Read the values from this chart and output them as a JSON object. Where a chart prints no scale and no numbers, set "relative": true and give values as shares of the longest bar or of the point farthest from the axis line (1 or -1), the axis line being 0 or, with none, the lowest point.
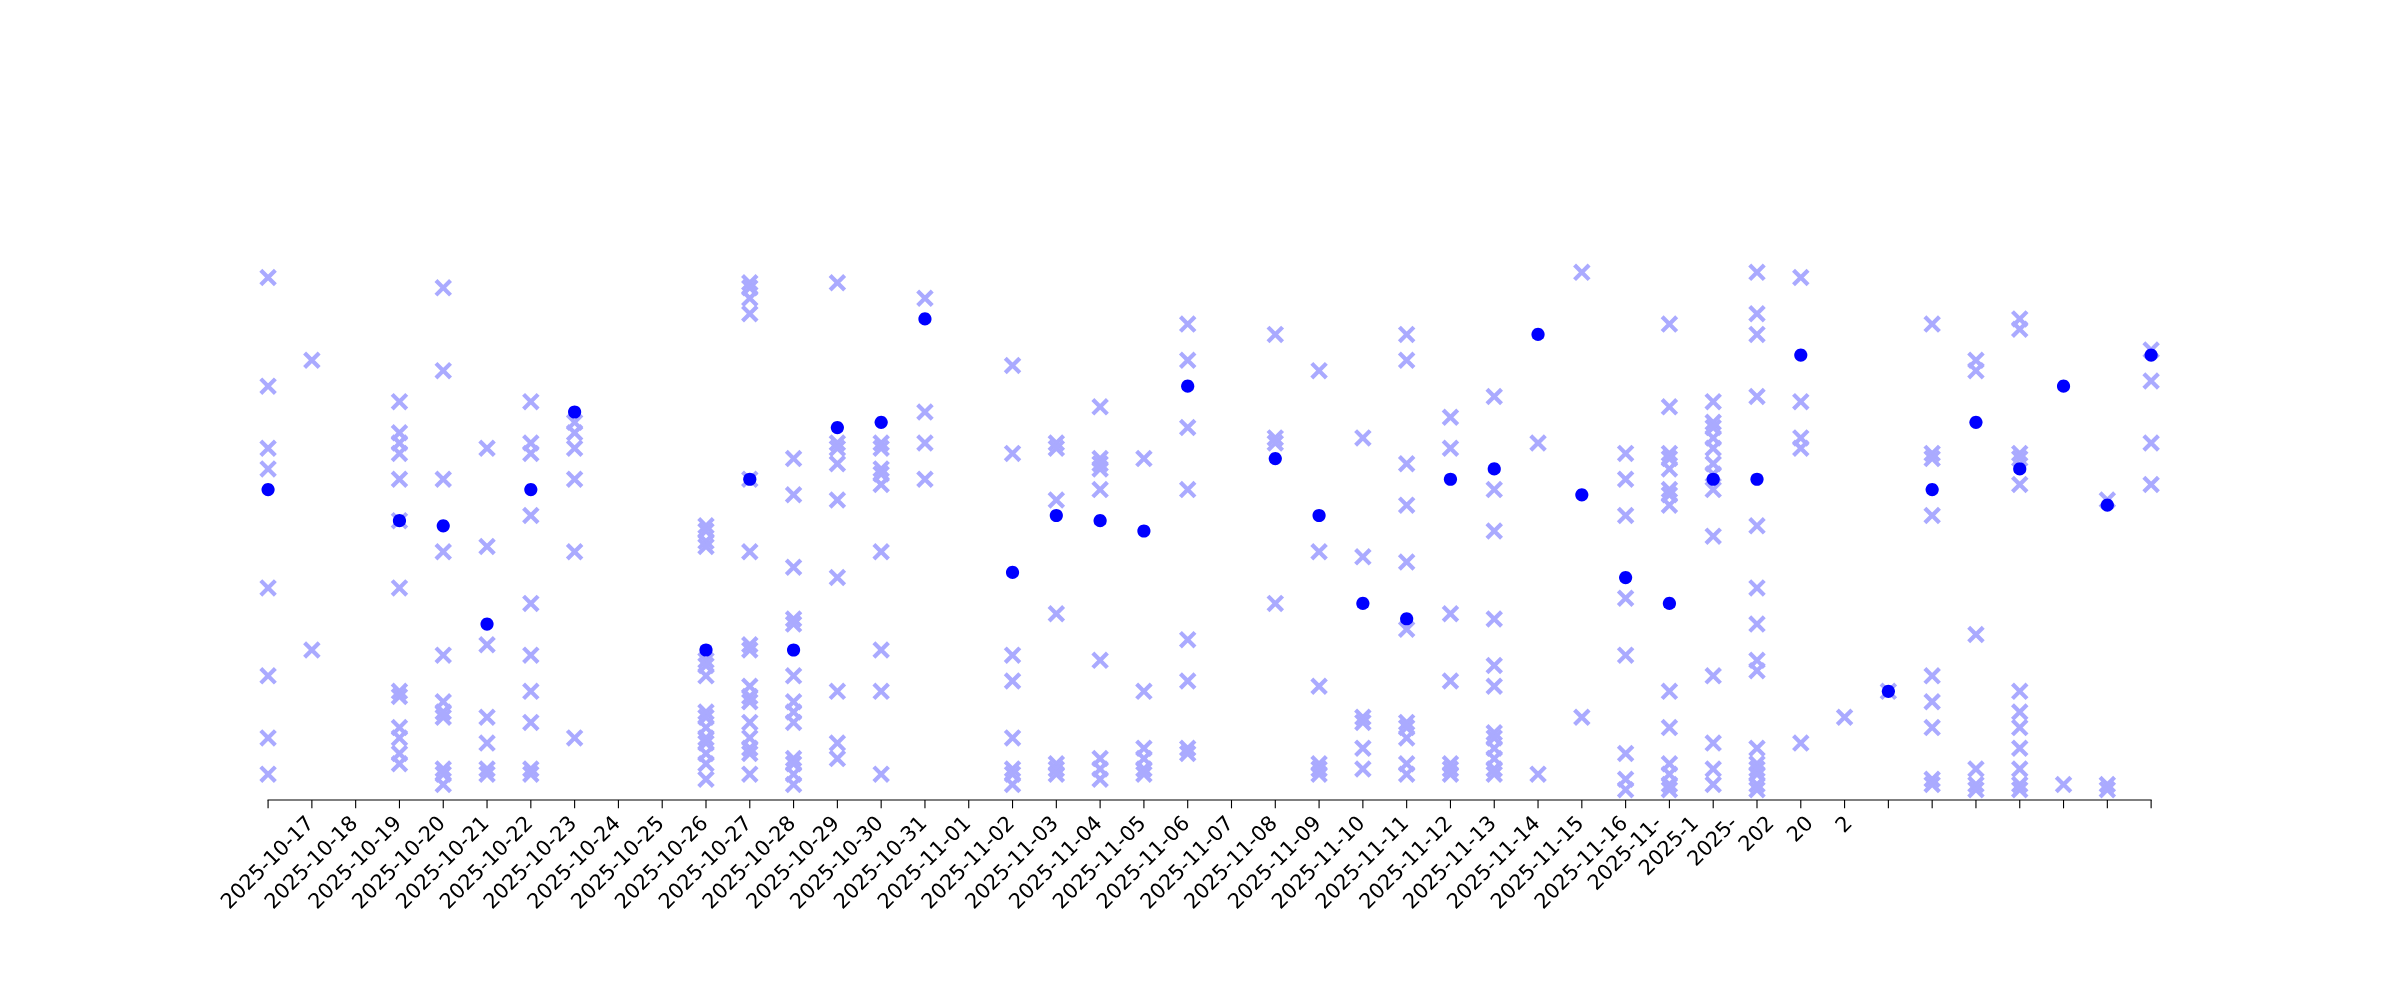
{
  "chart_data": {
    "type": "scatter",
    "relative": true,
    "grid": false,
    "xlim": [
      "2025-10-17",
      "2025-11-29"
    ],
    "xticks": [
      {
        "value": "2025-10-17",
        "label": "2025-10-17"
      },
      {
        "value": "2025-10-18",
        "label": "2025-10-18"
      },
      {
        "value": "2025-10-19",
        "label": "2025-10-19"
      },
      {
        "value": "2025-10-20",
        "label": "2025-10-20"
      },
      {
        "value": "2025-10-21",
        "label": "2025-10-21"
      },
      {
        "value": "2025-10-22",
        "label": "2025-10-22"
      },
      {
        "value": "2025-10-23",
        "label": "2025-10-23"
      },
      {
        "value": "2025-10-24",
        "label": "2025-10-24"
      },
      {
        "value": "2025-10-25",
        "label": "2025-10-25"
      },
      {
        "value": "2025-10-26",
        "label": "2025-10-26"
      },
      {
        "value": "2025-10-27",
        "label": "2025-10-27"
      },
      {
        "value": "2025-10-28",
        "label": "2025-10-28"
      },
      {
        "value": "2025-10-29",
        "label": "2025-10-29"
      },
      {
        "value": "2025-10-30",
        "label": "2025-10-30"
      },
      {
        "value": "2025-10-31",
        "label": "2025-10-31"
      },
      {
        "value": "2025-11-01",
        "label": "2025-11-01"
      },
      {
        "value": "2025-11-02",
        "label": "2025-11-02"
      },
      {
        "value": "2025-11-03",
        "label": "2025-11-03"
      },
      {
        "value": "2025-11-04",
        "label": "2025-11-04"
      },
      {
        "value": "2025-11-05",
        "label": "2025-11-05"
      },
      {
        "value": "2025-11-06",
        "label": "2025-11-06"
      },
      {
        "value": "2025-11-07",
        "label": "2025-11-07"
      },
      {
        "value": "2025-11-08",
        "label": "2025-11-08"
      },
      {
        "value": "2025-11-09",
        "label": "2025-11-09"
      },
      {
        "value": "2025-11-10",
        "label": "2025-11-10"
      },
      {
        "value": "2025-11-11",
        "label": "2025-11-11"
      },
      {
        "value": "2025-11-12",
        "label": "2025-11-12"
      },
      {
        "value": "2025-11-13",
        "label": "2025-11-13"
      },
      {
        "value": "2025-11-14",
        "label": "2025-11-14"
      },
      {
        "value": "2025-11-15",
        "label": "2025-11-15"
      },
      {
        "value": "2025-11-16",
        "label": "2025-11-16"
      },
      {
        "value": "2025-11-17",
        "label": "2025-11-"
      },
      {
        "value": "2025-11-18",
        "label": "2025-1"
      },
      {
        "value": "2025-11-19",
        "label": "2025-"
      },
      {
        "value": "2025-11-20",
        "label": "202"
      },
      {
        "value": "2025-11-21",
        "label": "20"
      },
      {
        "value": "2025-11-22",
        "label": "2"
      },
      {
        "value": "2025-11-23",
        "label": null
      },
      {
        "value": "2025-11-24",
        "label": null
      },
      {
        "value": "2025-11-25",
        "label": null
      },
      {
        "value": "2025-11-26",
        "label": null
      },
      {
        "value": "2025-11-27",
        "label": null
      },
      {
        "value": "2025-11-28",
        "label": null
      },
      {
        "value": "2025-11-29",
        "label": null
      }
    ],
    "series": [
      {
        "marker": "cross",
        "color": "#aaaaff",
        "x": [
          "2025-10-17",
          "2025-10-17",
          "2025-10-17",
          "2025-10-17",
          "2025-10-17",
          "2025-10-17",
          "2025-10-17",
          "2025-10-17",
          "2025-10-18",
          "2025-10-18",
          "2025-10-20",
          "2025-10-20",
          "2025-10-20",
          "2025-10-20",
          "2025-10-20",
          "2025-10-20",
          "2025-10-20",
          "2025-10-20",
          "2025-10-20",
          "2025-10-20",
          "2025-10-20",
          "2025-10-20",
          "2025-10-20",
          "2025-10-21",
          "2025-10-21",
          "2025-10-21",
          "2025-10-21",
          "2025-10-21",
          "2025-10-21",
          "2025-10-21",
          "2025-10-21",
          "2025-10-21",
          "2025-10-21",
          "2025-10-21",
          "2025-10-22",
          "2025-10-22",
          "2025-10-22",
          "2025-10-22",
          "2025-10-22",
          "2025-10-22",
          "2025-10-22",
          "2025-10-23",
          "2025-10-23",
          "2025-10-23",
          "2025-10-23",
          "2025-10-23",
          "2025-10-23",
          "2025-10-23",
          "2025-10-23",
          "2025-10-23",
          "2025-10-23",
          "2025-10-24",
          "2025-10-24",
          "2025-10-24",
          "2025-10-24",
          "2025-10-24",
          "2025-10-24",
          "2025-10-27",
          "2025-10-27",
          "2025-10-27",
          "2025-10-27",
          "2025-10-27",
          "2025-10-27",
          "2025-10-27",
          "2025-10-27",
          "2025-10-27",
          "2025-10-27",
          "2025-10-27",
          "2025-10-27",
          "2025-10-27",
          "2025-10-27",
          "2025-10-27",
          "2025-10-28",
          "2025-10-28",
          "2025-10-28",
          "2025-10-28",
          "2025-10-28",
          "2025-10-28",
          "2025-10-28",
          "2025-10-28",
          "2025-10-28",
          "2025-10-28",
          "2025-10-28",
          "2025-10-28",
          "2025-10-28",
          "2025-10-28",
          "2025-10-28",
          "2025-10-28",
          "2025-10-29",
          "2025-10-29",
          "2025-10-29",
          "2025-10-29",
          "2025-10-29",
          "2025-10-29",
          "2025-10-29",
          "2025-10-29",
          "2025-10-29",
          "2025-10-29",
          "2025-10-29",
          "2025-10-29",
          "2025-10-29",
          "2025-10-30",
          "2025-10-30",
          "2025-10-30",
          "2025-10-30",
          "2025-10-30",
          "2025-10-30",
          "2025-10-30",
          "2025-10-30",
          "2025-10-30",
          "2025-10-31",
          "2025-10-31",
          "2025-10-31",
          "2025-10-31",
          "2025-10-31",
          "2025-10-31",
          "2025-10-31",
          "2025-10-31",
          "2025-10-31",
          "2025-11-01",
          "2025-11-01",
          "2025-11-01",
          "2025-11-01",
          "2025-11-03",
          "2025-11-03",
          "2025-11-03",
          "2025-11-03",
          "2025-11-03",
          "2025-11-03",
          "2025-11-03",
          "2025-11-03",
          "2025-11-04",
          "2025-11-04",
          "2025-11-04",
          "2025-11-04",
          "2025-11-04",
          "2025-11-04",
          "2025-11-04",
          "2025-11-05",
          "2025-11-05",
          "2025-11-05",
          "2025-11-05",
          "2025-11-05",
          "2025-11-05",
          "2025-11-05",
          "2025-11-05",
          "2025-11-05",
          "2025-11-06",
          "2025-11-06",
          "2025-11-06",
          "2025-11-06",
          "2025-11-06",
          "2025-11-06",
          "2025-11-07",
          "2025-11-07",
          "2025-11-07",
          "2025-11-07",
          "2025-11-07",
          "2025-11-07",
          "2025-11-07",
          "2025-11-07",
          "2025-11-09",
          "2025-11-09",
          "2025-11-09",
          "2025-11-09",
          "2025-11-10",
          "2025-11-10",
          "2025-11-10",
          "2025-11-10",
          "2025-11-10",
          "2025-11-10",
          "2025-11-11",
          "2025-11-11",
          "2025-11-11",
          "2025-11-11",
          "2025-11-11",
          "2025-11-11",
          "2025-11-12",
          "2025-11-12",
          "2025-11-12",
          "2025-11-12",
          "2025-11-12",
          "2025-11-12",
          "2025-11-12",
          "2025-11-12",
          "2025-11-12",
          "2025-11-12",
          "2025-11-12",
          "2025-11-13",
          "2025-11-13",
          "2025-11-13",
          "2025-11-13",
          "2025-11-13",
          "2025-11-13",
          "2025-11-13",
          "2025-11-14",
          "2025-11-14",
          "2025-11-14",
          "2025-11-14",
          "2025-11-14",
          "2025-11-14",
          "2025-11-14",
          "2025-11-14",
          "2025-11-14",
          "2025-11-14",
          "2025-11-14",
          "2025-11-14",
          "2025-11-15",
          "2025-11-15",
          "2025-11-16",
          "2025-11-16",
          "2025-11-17",
          "2025-11-17",
          "2025-11-17",
          "2025-11-17",
          "2025-11-17",
          "2025-11-17",
          "2025-11-17",
          "2025-11-17",
          "2025-11-18",
          "2025-11-18",
          "2025-11-18",
          "2025-11-18",
          "2025-11-18",
          "2025-11-18",
          "2025-11-18",
          "2025-11-18",
          "2025-11-18",
          "2025-11-18",
          "2025-11-18",
          "2025-11-18",
          "2025-11-18",
          "2025-11-18",
          "2025-11-19",
          "2025-11-19",
          "2025-11-19",
          "2025-11-19",
          "2025-11-19",
          "2025-11-19",
          "2025-11-19",
          "2025-11-19",
          "2025-11-19",
          "2025-11-19",
          "2025-11-19",
          "2025-11-19",
          "2025-11-19",
          "2025-11-20",
          "2025-11-20",
          "2025-11-20",
          "2025-11-20",
          "2025-11-20",
          "2025-11-20",
          "2025-11-20",
          "2025-11-20",
          "2025-11-20",
          "2025-11-20",
          "2025-11-20",
          "2025-11-20",
          "2025-11-20",
          "2025-11-20",
          "2025-11-20",
          "2025-11-21",
          "2025-11-21",
          "2025-11-21",
          "2025-11-21",
          "2025-11-21",
          "2025-11-22",
          "2025-11-23",
          "2025-11-24",
          "2025-11-24",
          "2025-11-24",
          "2025-11-24",
          "2025-11-24",
          "2025-11-24",
          "2025-11-24",
          "2025-11-24",
          "2025-11-24",
          "2025-11-25",
          "2025-11-25",
          "2025-11-25",
          "2025-11-25",
          "2025-11-25",
          "2025-11-25",
          "2025-11-26",
          "2025-11-26",
          "2025-11-26",
          "2025-11-26",
          "2025-11-26",
          "2025-11-26",
          "2025-11-26",
          "2025-11-26",
          "2025-11-26",
          "2025-11-26",
          "2025-11-26",
          "2025-11-26",
          "2025-11-27",
          "2025-11-28",
          "2025-11-28",
          "2025-11-28",
          "2025-11-29",
          "2025-11-29",
          "2025-11-29",
          "2025-11-29"
        ],
        "values": [
          0.99,
          0.78,
          0.66,
          0.62,
          0.39,
          0.22,
          0.1,
          0.03,
          0.83,
          0.27,
          0.75,
          0.69,
          0.67,
          0.65,
          0.6,
          0.52,
          0.39,
          0.19,
          0.18,
          0.12,
          0.1,
          0.07,
          0.05,
          0.97,
          0.81,
          0.6,
          0.46,
          0.26,
          0.17,
          0.15,
          0.14,
          0.04,
          0.03,
          0.01,
          0.66,
          0.47,
          0.28,
          0.14,
          0.09,
          0.04,
          0.03,
          0.75,
          0.67,
          0.65,
          0.53,
          0.36,
          0.26,
          0.19,
          0.13,
          0.04,
          0.03,
          0.71,
          0.69,
          0.66,
          0.6,
          0.46,
          0.1,
          0.51,
          0.5,
          0.48,
          0.47,
          0.25,
          0.24,
          0.22,
          0.15,
          0.14,
          0.12,
          0.1,
          0.09,
          0.07,
          0.05,
          0.02,
          0.98,
          0.97,
          0.95,
          0.92,
          0.6,
          0.46,
          0.28,
          0.27,
          0.2,
          0.18,
          0.17,
          0.13,
          0.1,
          0.08,
          0.07,
          0.03,
          0.64,
          0.57,
          0.43,
          0.33,
          0.32,
          0.22,
          0.17,
          0.15,
          0.13,
          0.06,
          0.05,
          0.03,
          0.01,
          0.98,
          0.67,
          0.66,
          0.63,
          0.56,
          0.41,
          0.19,
          0.09,
          0.06,
          0.67,
          0.66,
          0.62,
          0.61,
          0.59,
          0.46,
          0.27,
          0.19,
          0.03,
          0.95,
          0.73,
          0.67,
          0.6,
          0.82,
          0.65,
          0.26,
          0.21,
          0.1,
          0.04,
          0.03,
          0.01,
          0.67,
          0.66,
          0.56,
          0.34,
          0.05,
          0.04,
          0.03,
          0.74,
          0.64,
          0.63,
          0.62,
          0.58,
          0.25,
          0.06,
          0.04,
          0.02,
          0.64,
          0.19,
          0.08,
          0.06,
          0.04,
          0.03,
          0.9,
          0.83,
          0.7,
          0.58,
          0.29,
          0.21,
          0.08,
          0.07,
          0.88,
          0.68,
          0.67,
          0.36,
          0.81,
          0.46,
          0.2,
          0.05,
          0.04,
          0.03,
          0.68,
          0.45,
          0.14,
          0.13,
          0.08,
          0.04,
          0.88,
          0.83,
          0.63,
          0.55,
          0.44,
          0.31,
          0.13,
          0.12,
          0.1,
          0.05,
          0.03,
          0.72,
          0.66,
          0.34,
          0.21,
          0.05,
          0.04,
          0.03,
          0.76,
          0.58,
          0.5,
          0.33,
          0.24,
          0.2,
          0.11,
          0.1,
          0.08,
          0.06,
          0.04,
          0.03,
          0.67,
          0.03,
          1.0,
          0.14,
          0.65,
          0.6,
          0.53,
          0.37,
          0.26,
          0.07,
          0.02,
          0.0,
          0.9,
          0.74,
          0.65,
          0.64,
          0.62,
          0.58,
          0.57,
          0.55,
          0.19,
          0.12,
          0.05,
          0.03,
          0.01,
          0.0,
          0.75,
          0.71,
          0.7,
          0.68,
          0.66,
          0.63,
          0.61,
          0.58,
          0.49,
          0.22,
          0.09,
          0.04,
          0.01,
          1.0,
          0.92,
          0.88,
          0.76,
          0.51,
          0.39,
          0.32,
          0.25,
          0.23,
          0.08,
          0.05,
          0.04,
          0.03,
          0.01,
          0.0,
          0.99,
          0.75,
          0.68,
          0.66,
          0.09,
          0.14,
          0.19,
          0.9,
          0.65,
          0.64,
          0.53,
          0.22,
          0.17,
          0.12,
          0.02,
          0.01,
          0.83,
          0.81,
          0.3,
          0.04,
          0.01,
          0.0,
          0.91,
          0.89,
          0.65,
          0.64,
          0.59,
          0.19,
          0.15,
          0.12,
          0.08,
          0.04,
          0.01,
          0.0,
          0.01,
          0.56,
          0.01,
          0.0,
          0.85,
          0.79,
          0.67,
          0.59
        ]
      },
      {
        "marker": "circle",
        "color": "#0000ff",
        "x": [
          "2025-10-17",
          "2025-10-20",
          "2025-10-21",
          "2025-10-22",
          "2025-10-23",
          "2025-10-24",
          "2025-10-27",
          "2025-10-28",
          "2025-10-29",
          "2025-10-30",
          "2025-10-31",
          "2025-11-01",
          "2025-11-03",
          "2025-11-04",
          "2025-11-05",
          "2025-11-06",
          "2025-11-07",
          "2025-11-09",
          "2025-11-10",
          "2025-11-11",
          "2025-11-12",
          "2025-11-13",
          "2025-11-14",
          "2025-11-15",
          "2025-11-16",
          "2025-11-17",
          "2025-11-18",
          "2025-11-19",
          "2025-11-20",
          "2025-11-21",
          "2025-11-23",
          "2025-11-24",
          "2025-11-25",
          "2025-11-26",
          "2025-11-27",
          "2025-11-28",
          "2025-11-29"
        ],
        "values": [
          0.58,
          0.52,
          0.51,
          0.32,
          0.58,
          0.73,
          0.27,
          0.6,
          0.27,
          0.7,
          0.71,
          0.91,
          0.42,
          0.53,
          0.52,
          0.5,
          0.78,
          0.64,
          0.53,
          0.36,
          0.33,
          0.6,
          0.62,
          0.88,
          0.57,
          0.41,
          0.36,
          0.6,
          0.6,
          0.84,
          0.19,
          0.58,
          0.71,
          0.62,
          0.78,
          0.55,
          0.84
        ]
      }
    ]
  }
}
